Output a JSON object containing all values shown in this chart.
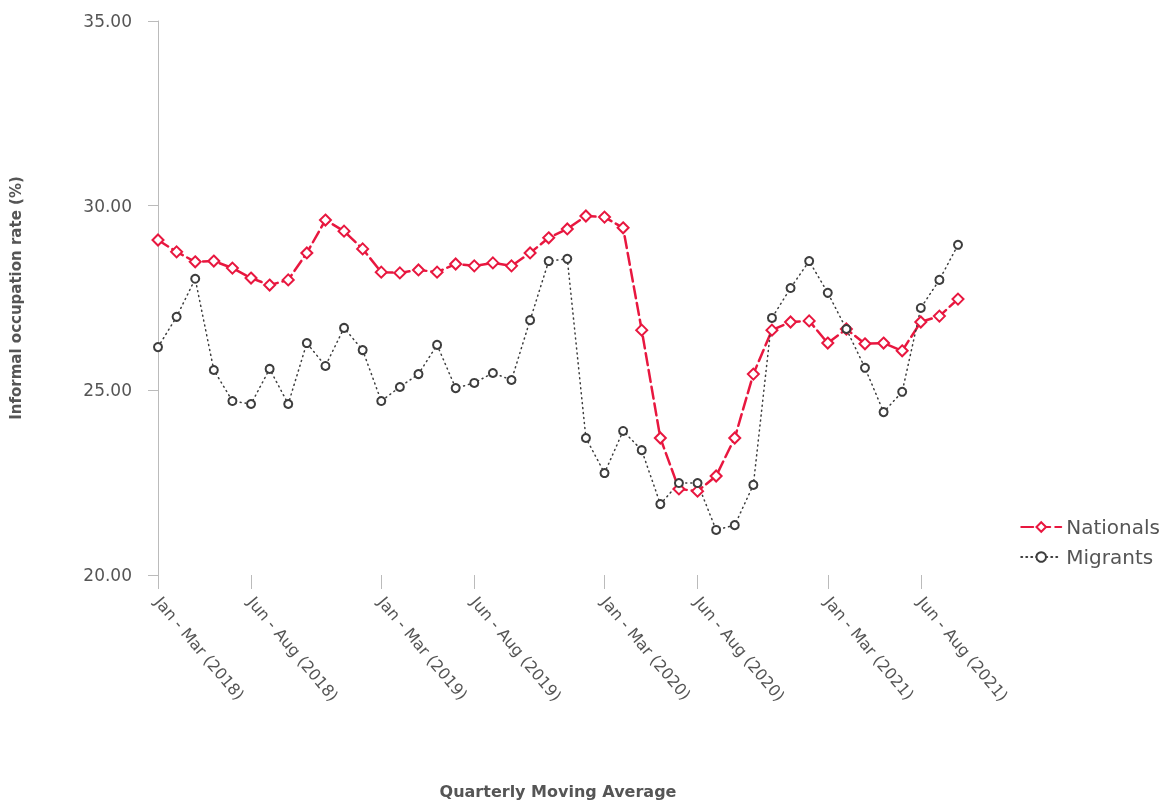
{
  "chart_data": {
    "type": "line",
    "xlabel": "Quarterly Moving Average",
    "ylabel": "Informal occupation rate (%)",
    "categories": [
      "Jan - Mar (2018)",
      null,
      null,
      null,
      null,
      "Jun - Aug (2018)",
      null,
      null,
      null,
      null,
      null,
      null,
      "Jan - Mar (2019)",
      null,
      null,
      null,
      null,
      "Jun - Aug (2019)",
      null,
      null,
      null,
      null,
      null,
      null,
      "Jan - Mar (2020)",
      null,
      null,
      null,
      null,
      "Jun - Aug (2020)",
      null,
      null,
      null,
      null,
      null,
      null,
      "Jan - Mar (2021)",
      null,
      null,
      null,
      null,
      "Jun - Aug (2021)",
      null,
      null
    ],
    "series": [
      {
        "name": "Nationals",
        "color": "#e8173f",
        "marker": "diamond",
        "line_style": "dashed",
        "values": [
          29.07,
          28.75,
          28.48,
          28.5,
          28.31,
          28.04,
          27.85,
          27.99,
          28.72,
          29.61,
          29.31,
          28.83,
          28.2,
          28.18,
          28.26,
          28.2,
          28.42,
          28.37,
          28.45,
          28.37,
          28.72,
          29.13,
          29.37,
          29.72,
          29.69,
          29.4,
          26.63,
          23.71,
          22.33,
          22.27,
          22.68,
          23.71,
          25.44,
          26.63,
          26.85,
          26.88,
          26.28,
          26.66,
          26.26,
          26.28,
          26.07,
          26.85,
          27.01,
          27.47
        ]
      },
      {
        "name": "Migrants",
        "color": "#3d3d3d",
        "marker": "circle",
        "line_style": "dotted",
        "values": [
          26.17,
          26.99,
          28.02,
          25.55,
          24.71,
          24.63,
          25.58,
          24.63,
          26.28,
          25.66,
          26.69,
          26.09,
          24.71,
          25.09,
          25.44,
          26.23,
          25.06,
          25.2,
          25.47,
          25.28,
          26.9,
          28.5,
          28.56,
          23.71,
          22.76,
          23.9,
          23.38,
          21.92,
          22.49,
          22.49,
          21.22,
          21.35,
          22.44,
          26.96,
          27.77,
          28.5,
          27.64,
          26.66,
          25.61,
          24.41,
          24.96,
          27.23,
          27.99,
          28.94
        ]
      }
    ],
    "ylim": [
      20,
      35
    ],
    "yticks": [
      {
        "value": 20,
        "label": "20.00"
      },
      {
        "value": 25,
        "label": "25.00"
      },
      {
        "value": 30,
        "label": "30.00"
      },
      {
        "value": 35,
        "label": "35.00"
      }
    ],
    "grid": false,
    "legend": "right"
  }
}
